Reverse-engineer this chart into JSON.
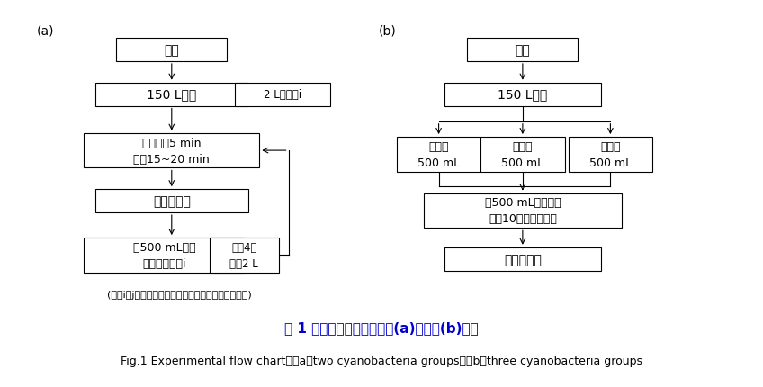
{
  "title_cn": "图 1 藻类混合实验流程图：(a)双藻；(b)三藻",
  "title_en": "Fig.1 Experimental flow chart：（a）two cyanobacteria groups；（b）three cyanobacteria groups",
  "title_en_plain": "Fig.1 Experimental flow chart：（a）two cyanobacteria groups；（b）three cyanobacteria groups",
  "title_cn_color": "#0000CC",
  "title_en_color": "#000000",
  "label_a": "(a)",
  "label_b": "(b)",
  "note": "(注：i和j分别为微囊藻、鱼腾藻、束丝藻中任意两种)"
}
